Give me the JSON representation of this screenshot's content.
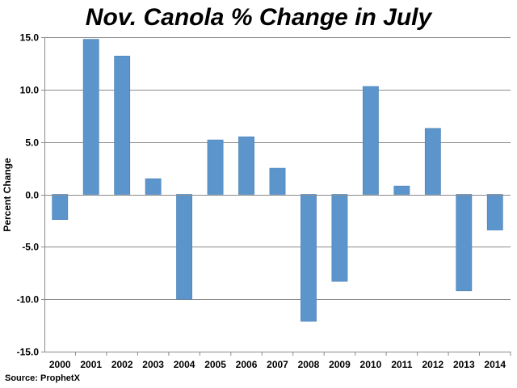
{
  "chart_data": {
    "type": "bar",
    "title": "Nov. Canola % Change in July",
    "xlabel": "",
    "ylabel": "Percent Change",
    "categories": [
      "2000",
      "2001",
      "2002",
      "2003",
      "2004",
      "2005",
      "2006",
      "2007",
      "2008",
      "2009",
      "2010",
      "2011",
      "2012",
      "2013",
      "2014"
    ],
    "values": [
      -2.4,
      14.8,
      13.2,
      1.5,
      -10.0,
      5.2,
      5.5,
      2.5,
      -12.1,
      -8.3,
      10.3,
      0.8,
      6.3,
      -9.2,
      -3.4
    ],
    "ylim": [
      -15,
      15
    ],
    "yticks": [
      15,
      10,
      5,
      0,
      -5,
      -10,
      -15
    ],
    "ytick_labels": [
      "15.0",
      "10.0",
      "5.0",
      "0.0",
      "-5.0",
      "-10.0",
      "-15.0"
    ],
    "grid": true,
    "bar_color": "#5b95cc",
    "source": "Source: ProphetX"
  }
}
